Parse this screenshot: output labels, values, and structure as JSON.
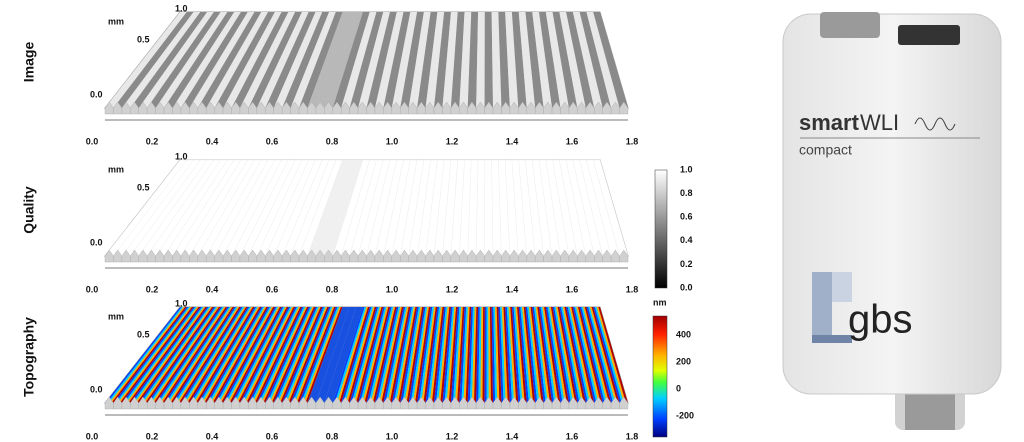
{
  "panels": [
    {
      "label": "Image",
      "y_unit": "mm",
      "y_ticks": [
        "1.0",
        "0.5",
        "0.0"
      ],
      "x_ticks": [
        "0.0",
        "0.2",
        "0.4",
        "0.6",
        "0.8",
        "1.0",
        "1.2",
        "1.4",
        "1.6",
        "1.8"
      ]
    },
    {
      "label": "Quality",
      "y_unit": "mm",
      "y_ticks": [
        "1.0",
        "0.5",
        "0.0"
      ],
      "x_ticks": [
        "0.0",
        "0.2",
        "0.4",
        "0.6",
        "0.8",
        "1.0",
        "1.2",
        "1.4",
        "1.6",
        "1.8"
      ]
    },
    {
      "label": "Topography",
      "y_unit": "mm",
      "y_ticks": [
        "1.0",
        "0.5",
        "0.0"
      ],
      "x_ticks": [
        "0.0",
        "0.2",
        "0.4",
        "0.6",
        "0.8",
        "1.0",
        "1.2",
        "1.4",
        "1.6",
        "1.8"
      ]
    }
  ],
  "quality_colorbar": {
    "ticks": [
      "1.0",
      "0.8",
      "0.6",
      "0.4",
      "0.2",
      "0.0"
    ]
  },
  "topography_colorbar": {
    "unit": "nm",
    "ticks": [
      "400",
      "200",
      "0",
      "-200"
    ]
  },
  "device": {
    "brand_bold": "smart",
    "brand_light": "WLI",
    "model": "compact",
    "logo": "gbs"
  }
}
